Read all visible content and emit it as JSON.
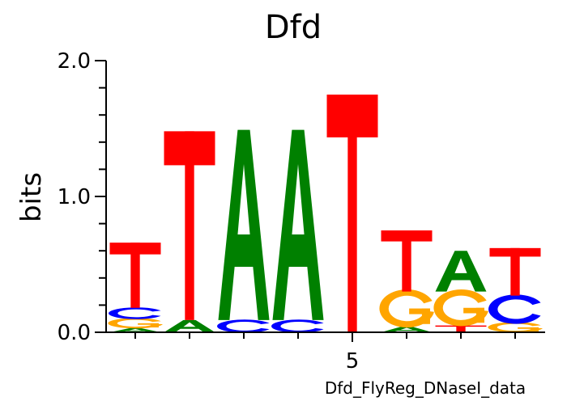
{
  "chart_data": {
    "type": "sequence-logo",
    "title": "Dfd",
    "ylabel": "bits",
    "xlabel": "Dfd_FlyReg_DNaseI_data",
    "ylim": [
      0,
      2.0
    ],
    "y_tick_labels": [
      {
        "value": 0.0,
        "label": "0.0"
      },
      {
        "value": 1.0,
        "label": "1.0"
      },
      {
        "value": 2.0,
        "label": "2.0"
      }
    ],
    "x_tick_labels": [
      {
        "position": 5,
        "label": "5"
      }
    ],
    "colors": {
      "A": "#008000",
      "C": "#0000ff",
      "G": "#ffa500",
      "T": "#ff0000"
    },
    "positions": [
      {
        "position": 1,
        "stack": [
          {
            "base": "A",
            "bits": 0.03
          },
          {
            "base": "G",
            "bits": 0.07
          },
          {
            "base": "C",
            "bits": 0.08
          },
          {
            "base": "T",
            "bits": 0.48
          }
        ]
      },
      {
        "position": 2,
        "stack": [
          {
            "base": "A",
            "bits": 0.09
          },
          {
            "base": "T",
            "bits": 1.39
          }
        ]
      },
      {
        "position": 3,
        "stack": [
          {
            "base": "C",
            "bits": 0.09
          },
          {
            "base": "A",
            "bits": 1.4
          }
        ]
      },
      {
        "position": 4,
        "stack": [
          {
            "base": "C",
            "bits": 0.09
          },
          {
            "base": "A",
            "bits": 1.4
          }
        ]
      },
      {
        "position": 5,
        "stack": [
          {
            "base": "T",
            "bits": 1.75
          }
        ]
      },
      {
        "position": 6,
        "stack": [
          {
            "base": "A",
            "bits": 0.04
          },
          {
            "base": "G",
            "bits": 0.26
          },
          {
            "base": "T",
            "bits": 0.45
          }
        ]
      },
      {
        "position": 7,
        "stack": [
          {
            "base": "T",
            "bits": 0.05
          },
          {
            "base": "G",
            "bits": 0.25
          },
          {
            "base": "A",
            "bits": 0.3
          }
        ]
      },
      {
        "position": 8,
        "stack": [
          {
            "base": "G",
            "bits": 0.07
          },
          {
            "base": "C",
            "bits": 0.2
          },
          {
            "base": "T",
            "bits": 0.35
          }
        ]
      }
    ]
  }
}
